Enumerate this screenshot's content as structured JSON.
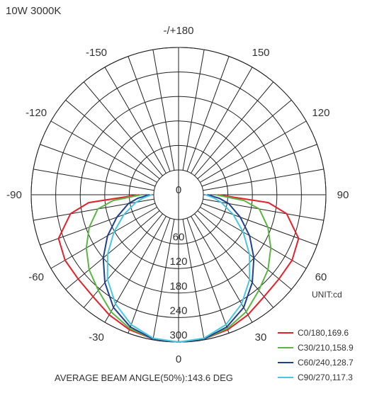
{
  "chart_data": {
    "type": "polar",
    "title": "10W 3000K",
    "unit_label": "UNIT:cd",
    "footer": "AVERAGE BEAM ANGLE(50%):143.6 DEG",
    "r_max": 300,
    "r_ticks": [
      "0",
      "60",
      "120",
      "180",
      "240",
      "300"
    ],
    "angle_labels": [
      {
        "angle": 0,
        "text": "0"
      },
      {
        "angle": 30,
        "text": "30"
      },
      {
        "angle": 60,
        "text": "60"
      },
      {
        "angle": 90,
        "text": "90"
      },
      {
        "angle": 120,
        "text": "120"
      },
      {
        "angle": 150,
        "text": "150"
      },
      {
        "angle": 180,
        "text": "-/+180"
      },
      {
        "angle": -150,
        "text": "-150"
      },
      {
        "angle": -120,
        "text": "-120"
      },
      {
        "angle": -90,
        "text": "-90"
      },
      {
        "angle": -60,
        "text": "-60"
      },
      {
        "angle": -30,
        "text": "-30"
      }
    ],
    "grid": true,
    "legend_position": "bottom-right",
    "angles": [
      0,
      10,
      20,
      30,
      40,
      50,
      60,
      70,
      80,
      85,
      90
    ],
    "series": [
      {
        "name": "C0/180,169.6",
        "color": "#e4202a",
        "values": [
          300,
          298,
          291,
          279,
          265,
          260,
          260,
          252,
          208,
          160,
          35
        ]
      },
      {
        "name": "C30/210,158.9",
        "color": "#5bb543",
        "values": [
          300,
          298,
          288,
          270,
          245,
          225,
          200,
          172,
          140,
          100,
          30
        ]
      },
      {
        "name": "C60/240,128.7",
        "color": "#1f3f8f",
        "values": [
          300,
          298,
          284,
          258,
          220,
          180,
          140,
          100,
          64,
          40,
          10
        ]
      },
      {
        "name": "C90/270,117.3",
        "color": "#48c8e0",
        "values": [
          300,
          296,
          278,
          248,
          210,
          166,
          122,
          82,
          45,
          25,
          5
        ]
      }
    ]
  }
}
